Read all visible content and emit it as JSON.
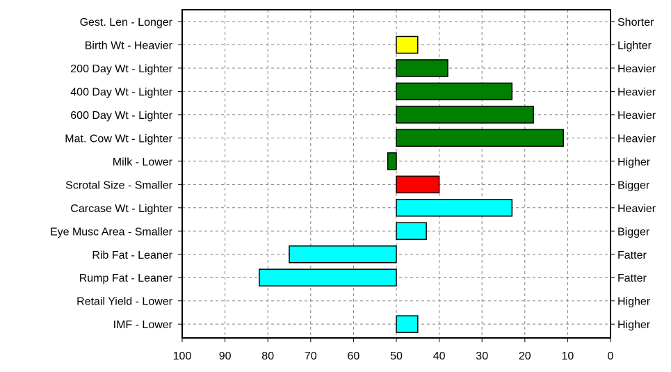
{
  "chart_data": {
    "type": "bar",
    "orientation": "horizontal",
    "xaxis": {
      "reversed": true,
      "xlim": [
        0,
        100
      ],
      "ticks": [
        100,
        90,
        80,
        70,
        60,
        50,
        40,
        30,
        20,
        10,
        0
      ]
    },
    "baseline": 50,
    "grid": true,
    "categories": [
      "Gest. Len - Longer",
      "Birth Wt - Heavier",
      "200 Day Wt - Lighter",
      "400 Day Wt - Lighter",
      "600 Day Wt - Lighter",
      "Mat. Cow Wt - Lighter",
      "Milk - Lower",
      "Scrotal Size - Smaller",
      "Carcase Wt - Lighter",
      "Eye Musc Area - Smaller",
      "Rib Fat - Leaner",
      "Rump Fat - Leaner",
      "Retail Yield - Lower",
      "IMF - Lower"
    ],
    "right_labels": [
      "Shorter",
      "Lighter",
      "Heavier",
      "Heavier",
      "Heavier",
      "Heavier",
      "Higher",
      "Bigger",
      "Heavier",
      "Bigger",
      "Fatter",
      "Fatter",
      "Higher",
      "Higher"
    ],
    "values": [
      null,
      45,
      38,
      23,
      18,
      11,
      52,
      40,
      23,
      43,
      75,
      82,
      null,
      45
    ],
    "colors": [
      "#ffff00",
      "#ffff00",
      "#008000",
      "#008000",
      "#008000",
      "#008000",
      "#008000",
      "#ff0000",
      "#00ffff",
      "#00ffff",
      "#00ffff",
      "#00ffff",
      "#00ffff",
      "#00ffff"
    ]
  }
}
